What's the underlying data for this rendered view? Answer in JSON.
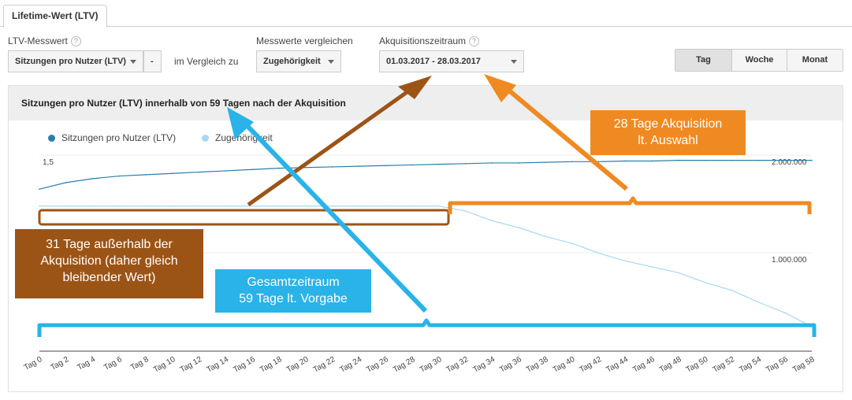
{
  "tab": {
    "label": "Lifetime-Wert (LTV)"
  },
  "controls": {
    "ltv_label": "LTV-Messwert",
    "ltv_value": "Sitzungen pro Nutzer (LTV)",
    "minus": "-",
    "compare_text": "im Vergleich zu",
    "compare_label": "Messwerte vergleichen",
    "compare_value": "Zugehörigkeit",
    "acq_label": "Akquisitionszeitraum",
    "acq_value": "01.03.2017 - 28.03.2017",
    "help": "?",
    "granularity": [
      "Tag",
      "Woche",
      "Monat"
    ],
    "active_granularity": "Tag"
  },
  "chart_data": {
    "type": "line",
    "title": "Sitzungen pro Nutzer (LTV) innerhalb von 59 Tagen nach der Akquisition",
    "legend": [
      "Sitzungen pro Nutzer (LTV)",
      "Zugehörigkeit"
    ],
    "colors": {
      "ltv": "#2a7fa8",
      "zug": "#a9d8ee"
    },
    "y_left_label": "1,5",
    "y_right_labels": [
      "2.000.000",
      "1.000.000"
    ],
    "x_labels": [
      "Tag 0",
      "Tag 2",
      "Tag 4",
      "Tag 6",
      "Tag 8",
      "Tag 10",
      "Tag 12",
      "Tag 14",
      "Tag 16",
      "Tag 18",
      "Tag 20",
      "Tag 22",
      "Tag 24",
      "Tag 26",
      "Tag 28",
      "Tag 30",
      "Tag 32",
      "Tag 34",
      "Tag 36",
      "Tag 38",
      "Tag 40",
      "Tag 42",
      "Tag 44",
      "Tag 46",
      "Tag 48",
      "Tag 50",
      "Tag 52",
      "Tag 54",
      "Tag 56",
      "Tag 58"
    ],
    "x": [
      0,
      2,
      4,
      6,
      8,
      10,
      12,
      14,
      16,
      18,
      20,
      22,
      24,
      26,
      28,
      30,
      32,
      34,
      36,
      38,
      40,
      42,
      44,
      46,
      48,
      50,
      52,
      54,
      56,
      58
    ],
    "series": [
      {
        "name": "Sitzungen pro Nutzer (LTV)",
        "values": [
          1.24,
          1.29,
          1.32,
          1.34,
          1.35,
          1.36,
          1.37,
          1.38,
          1.39,
          1.4,
          1.405,
          1.41,
          1.415,
          1.42,
          1.425,
          1.43,
          1.435,
          1.44,
          1.44,
          1.445,
          1.45,
          1.45,
          1.455,
          1.455,
          1.46,
          1.46,
          1.46,
          1.46,
          1.46,
          1.46
        ]
      },
      {
        "name": "Zugehörigkeit",
        "values": [
          1480000,
          1480000,
          1480000,
          1480000,
          1480000,
          1480000,
          1480000,
          1480000,
          1480000,
          1480000,
          1480000,
          1480000,
          1480000,
          1480000,
          1480000,
          1480000,
          1430000,
          1330000,
          1260000,
          1170000,
          1100000,
          1000000,
          920000,
          860000,
          800000,
          700000,
          620000,
          500000,
          390000,
          250000
        ]
      }
    ]
  },
  "annotations": {
    "orange": [
      "28 Tage Akquisition",
      "lt. Auswahl"
    ],
    "brown": [
      "31 Tage außerhalb der",
      "Akquisition (daher gleich",
      "bleibender Wert)"
    ],
    "blue": [
      "Gesamtzeitraum",
      "59 Tage lt. Vorgabe"
    ],
    "colors": {
      "orange": "#ef8a22",
      "brown": "#9c5416",
      "blue": "#29b3e8"
    }
  }
}
